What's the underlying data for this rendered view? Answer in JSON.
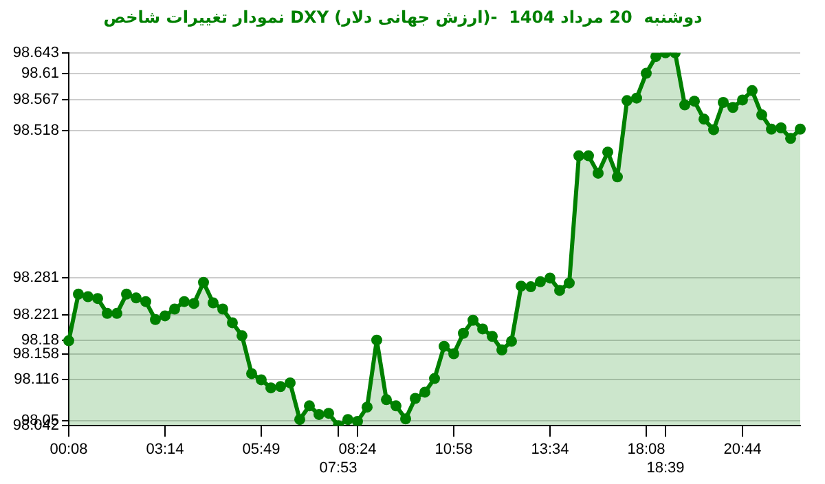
{
  "chart_data": {
    "type": "area",
    "title": "نمودار تغییرات شاخص DXY (ارزش جهانی دلار)-  دوشنبه  20 مرداد 1404",
    "categories": [
      "00:08",
      null,
      null,
      null,
      null,
      null,
      null,
      null,
      null,
      null,
      "03:14",
      null,
      null,
      null,
      null,
      null,
      null,
      null,
      null,
      null,
      "05:49",
      null,
      null,
      null,
      null,
      null,
      null,
      null,
      "07:53",
      null,
      "08:24",
      null,
      null,
      null,
      null,
      null,
      null,
      null,
      null,
      null,
      "10:58",
      null,
      null,
      null,
      null,
      null,
      null,
      null,
      null,
      null,
      "13:34",
      null,
      null,
      null,
      null,
      null,
      null,
      null,
      null,
      null,
      "18:08",
      null,
      "18:39",
      null,
      null,
      null,
      null,
      null,
      null,
      null,
      "20:44",
      null,
      null,
      null,
      null,
      null,
      null
    ],
    "series": [
      {
        "color": "#008000",
        "values": [
          98.179,
          98.254,
          98.25,
          98.247,
          98.223,
          98.223,
          98.254,
          98.248,
          98.242,
          98.213,
          98.219,
          98.23,
          98.242,
          98.239,
          98.273,
          98.24,
          98.23,
          98.208,
          98.187,
          98.126,
          98.116,
          98.103,
          98.105,
          98.111,
          98.052,
          98.074,
          98.06,
          98.062,
          98.042,
          98.052,
          98.049,
          98.072,
          98.18,
          98.084,
          98.074,
          98.053,
          98.086,
          98.096,
          98.118,
          98.17,
          98.158,
          98.191,
          98.212,
          98.198,
          98.186,
          98.164,
          98.178,
          98.267,
          98.266,
          98.274,
          98.28,
          98.26,
          98.272,
          98.477,
          98.477,
          98.449,
          98.483,
          98.443,
          98.566,
          98.57,
          98.61,
          98.637,
          98.643,
          98.643,
          98.559,
          98.565,
          98.536,
          98.519,
          98.563,
          98.555,
          98.567,
          98.582,
          98.543,
          98.52,
          98.522,
          98.505,
          98.52
        ]
      }
    ],
    "ylim": [
      98.042,
      98.643
    ],
    "yticks": [
      98.643,
      98.61,
      98.567,
      98.518,
      98.281,
      98.221,
      98.18,
      98.158,
      98.116,
      98.05,
      98.042
    ],
    "grid": "y",
    "legend": false,
    "marker": "circle"
  }
}
